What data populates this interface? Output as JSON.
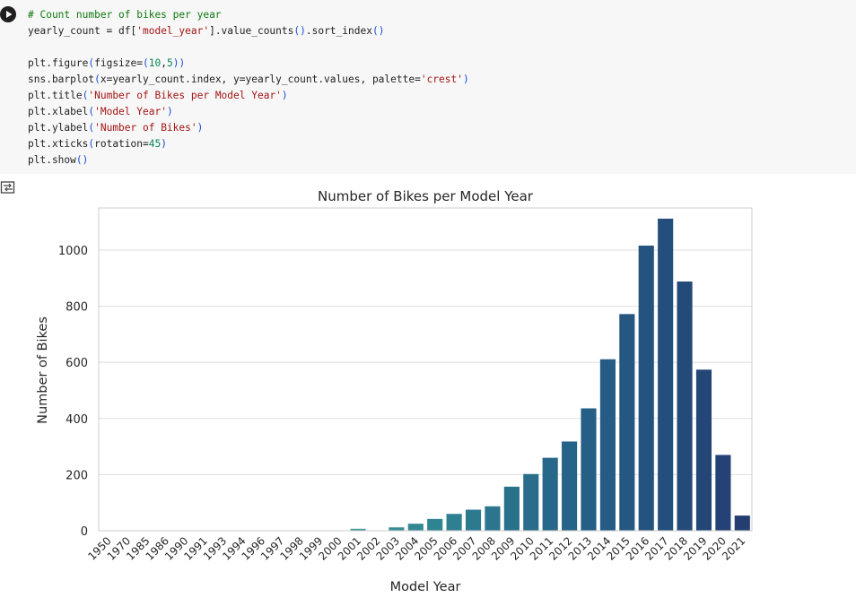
{
  "code_cell": {
    "run_icon": "play-circle-icon",
    "lines": [
      [
        {
          "t": "# Count number of bikes per year",
          "c": "com"
        }
      ],
      [
        {
          "t": "yearly_count = df["
        },
        {
          "t": "'model_year'",
          "c": "str"
        },
        {
          "t": "].value_counts"
        },
        {
          "t": "()",
          "c": "par"
        },
        {
          "t": ".sort_index"
        },
        {
          "t": "()",
          "c": "par"
        }
      ],
      [],
      [
        {
          "t": "plt.figure"
        },
        {
          "t": "(",
          "c": "par"
        },
        {
          "t": "figsize="
        },
        {
          "t": "(",
          "c": "par"
        },
        {
          "t": "10",
          "c": "num"
        },
        {
          "t": ","
        },
        {
          "t": "5",
          "c": "num"
        },
        {
          "t": "))",
          "c": "par"
        }
      ],
      [
        {
          "t": "sns.barplot"
        },
        {
          "t": "(",
          "c": "par"
        },
        {
          "t": "x=yearly_count.index, y=yearly_count.values, palette="
        },
        {
          "t": "'crest'",
          "c": "str"
        },
        {
          "t": ")",
          "c": "par"
        }
      ],
      [
        {
          "t": "plt.title"
        },
        {
          "t": "(",
          "c": "par"
        },
        {
          "t": "'Number of Bikes per Model Year'",
          "c": "str"
        },
        {
          "t": ")",
          "c": "par"
        }
      ],
      [
        {
          "t": "plt.xlabel"
        },
        {
          "t": "(",
          "c": "par"
        },
        {
          "t": "'Model Year'",
          "c": "str"
        },
        {
          "t": ")",
          "c": "par"
        }
      ],
      [
        {
          "t": "plt.ylabel"
        },
        {
          "t": "(",
          "c": "par"
        },
        {
          "t": "'Number of Bikes'",
          "c": "str"
        },
        {
          "t": ")",
          "c": "par"
        }
      ],
      [
        {
          "t": "plt.xticks"
        },
        {
          "t": "(",
          "c": "par"
        },
        {
          "t": "rotation="
        },
        {
          "t": "45",
          "c": "num"
        },
        {
          "t": ")",
          "c": "par"
        }
      ],
      [
        {
          "t": "plt.show"
        },
        {
          "t": "()",
          "c": "par"
        }
      ]
    ]
  },
  "output": {
    "icon": "output-toggle-icon"
  },
  "chart_data": {
    "type": "bar",
    "title": "Number of Bikes per Model Year",
    "xlabel": "Model Year",
    "ylabel": "Number of Bikes",
    "ylim": [
      0,
      1150
    ],
    "yticks": [
      0,
      200,
      400,
      600,
      800,
      1000
    ],
    "grid": true,
    "palette": "crest",
    "categories": [
      "1950",
      "1970",
      "1985",
      "1986",
      "1990",
      "1991",
      "1993",
      "1994",
      "1996",
      "1997",
      "1998",
      "1999",
      "2000",
      "2001",
      "2002",
      "2003",
      "2004",
      "2005",
      "2006",
      "2007",
      "2008",
      "2009",
      "2010",
      "2011",
      "2012",
      "2013",
      "2014",
      "2015",
      "2016",
      "2017",
      "2018",
      "2019",
      "2020",
      "2021"
    ],
    "values": [
      1,
      1,
      1,
      1,
      1,
      1,
      1,
      1,
      1,
      1,
      1,
      1,
      1,
      7,
      1,
      12,
      25,
      42,
      60,
      75,
      87,
      157,
      202,
      260,
      318,
      436,
      611,
      772,
      1016,
      1112,
      888,
      574,
      270,
      54
    ]
  }
}
